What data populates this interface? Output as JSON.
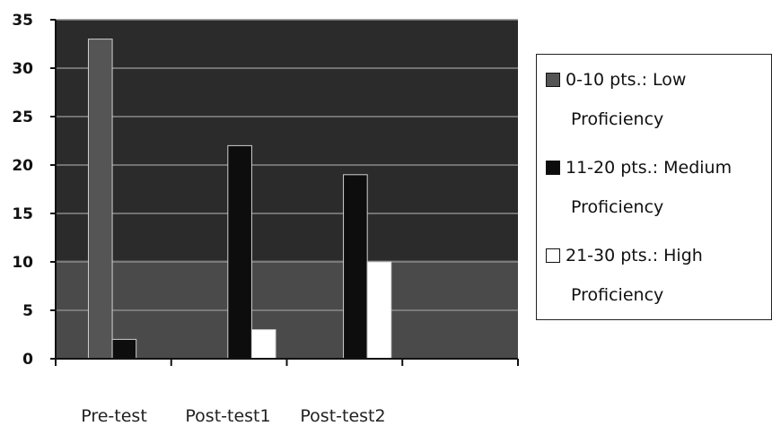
{
  "chart_data": {
    "type": "bar",
    "categories": [
      "Pre-test",
      "Post-test1",
      "Post-test2"
    ],
    "series": [
      {
        "name": "0-10 pts.: Low Proficiency",
        "label_line1": "0-10 pts.: Low",
        "label_line2": "Proficiency",
        "color": "#555555",
        "values": [
          33,
          0,
          0
        ]
      },
      {
        "name": "11-20 pts.: Medium Proficiency",
        "label_line1": "11-20 pts.: Medium",
        "label_line2": "Proficiency",
        "color": "#0d0d0d",
        "values": [
          2,
          22,
          19
        ]
      },
      {
        "name": "21-30 pts.: High Proficiency",
        "label_line1": "21-30 pts.: High",
        "label_line2": "Proficiency",
        "color": "#ffffff",
        "values": [
          0,
          3,
          10
        ]
      }
    ],
    "ylim": [
      0,
      35
    ],
    "yticks": [
      0,
      5,
      10,
      15,
      20,
      25,
      30,
      35
    ],
    "grid": true,
    "legend_position": "right"
  }
}
